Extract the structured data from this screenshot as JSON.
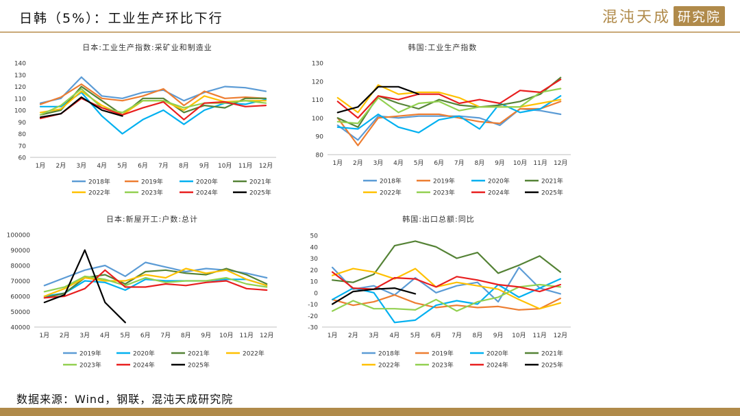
{
  "header": {
    "title": "日韩（5%）：工业生产环比下行",
    "brand_text": "混沌天成",
    "brand_box": "研究院"
  },
  "footer": {
    "source": "数据来源：Wind，钢联，混沌天成研究院"
  },
  "colors": {
    "accent": "#c9a877",
    "brand": "#b08a4a"
  },
  "chart_data": [
    {
      "type": "line",
      "title": "日本:工业生产指数:采矿业和制造业",
      "categories": [
        "1月",
        "2月",
        "3月",
        "4月",
        "5月",
        "6月",
        "7月",
        "8月",
        "9月",
        "10月",
        "11月",
        "12月"
      ],
      "ylim": [
        60,
        140
      ],
      "yticks": [
        60,
        70,
        80,
        90,
        100,
        110,
        120,
        130,
        140
      ],
      "series": [
        {
          "name": "2018年",
          "color": "#5b9bd5",
          "values": [
            106,
            110,
            128,
            112,
            110,
            115,
            117,
            108,
            115,
            120,
            119,
            116
          ]
        },
        {
          "name": "2019年",
          "color": "#ed7d31",
          "values": [
            105,
            111,
            122,
            110,
            108,
            112,
            118,
            104,
            116,
            110,
            111,
            110
          ]
        },
        {
          "name": "2020年",
          "color": "#00b0f0",
          "values": [
            103,
            103,
            115,
            95,
            80,
            92,
            100,
            88,
            100,
            106,
            105,
            109
          ]
        },
        {
          "name": "2021年",
          "color": "#548235",
          "values": [
            96,
            100,
            120,
            108,
            96,
            110,
            110,
            98,
            104,
            102,
            110,
            110
          ]
        },
        {
          "name": "2022年",
          "color": "#ffc000",
          "values": [
            98,
            101,
            116,
            104,
            96,
            108,
            108,
            100,
            112,
            107,
            108,
            108
          ]
        },
        {
          "name": "2023年",
          "color": "#92d050",
          "values": [
            96,
            104,
            118,
            102,
            98,
            108,
            108,
            102,
            106,
            106,
            108,
            106
          ]
        },
        {
          "name": "2024年",
          "color": "#e81e1e",
          "values": [
            93,
            97,
            110,
            102,
            96,
            102,
            107,
            92,
            106,
            107,
            103,
            104
          ]
        },
        {
          "name": "2025年",
          "color": "#000000",
          "values": [
            94,
            97,
            111,
            100,
            95,
            null,
            null,
            null,
            null,
            null,
            null,
            null
          ]
        }
      ],
      "legend": "bottom"
    },
    {
      "type": "line",
      "title": "韩国:工业生产指数",
      "categories": [
        "1月",
        "2月",
        "3月",
        "4月",
        "5月",
        "6月",
        "7月",
        "8月",
        "9月",
        "10月",
        "11月",
        "12月"
      ],
      "ylim": [
        80,
        130
      ],
      "yticks": [
        80,
        90,
        100,
        110,
        120,
        130
      ],
      "series": [
        {
          "name": "2018年",
          "color": "#5b9bd5",
          "values": [
            96,
            88,
            101,
            100,
            101,
            101,
            101,
            100,
            96,
            105,
            104,
            102
          ]
        },
        {
          "name": "2019年",
          "color": "#ed7d31",
          "values": [
            100,
            85,
            100,
            101,
            102,
            102,
            100,
            98,
            97,
            105,
            105,
            109
          ]
        },
        {
          "name": "2020年",
          "color": "#00b0f0",
          "values": [
            95,
            94,
            102,
            95,
            92,
            99,
            101,
            94,
            108,
            103,
            105,
            112
          ]
        },
        {
          "name": "2021年",
          "color": "#548235",
          "values": [
            100,
            95,
            112,
            108,
            105,
            110,
            107,
            106,
            107,
            109,
            113,
            122
          ]
        },
        {
          "name": "2022年",
          "color": "#ffc000",
          "values": [
            111,
            103,
            118,
            113,
            114,
            114,
            111,
            106,
            106,
            106,
            108,
            110
          ]
        },
        {
          "name": "2023年",
          "color": "#92d050",
          "values": [
            98,
            97,
            111,
            103,
            108,
            109,
            104,
            106,
            106,
            106,
            114,
            116
          ]
        },
        {
          "name": "2024年",
          "color": "#e81e1e",
          "values": [
            109,
            100,
            112,
            110,
            113,
            113,
            108,
            110,
            108,
            115,
            114,
            121
          ]
        },
        {
          "name": "2025年",
          "color": "#000000",
          "values": [
            103,
            106,
            117,
            117,
            113,
            null,
            null,
            null,
            null,
            null,
            null,
            null
          ]
        }
      ],
      "legend": "bottom"
    },
    {
      "type": "line",
      "title": "日本:新屋开工:户数:总计",
      "categories": [
        "1月",
        "2月",
        "3月",
        "4月",
        "5月",
        "6月",
        "7月",
        "8月",
        "9月",
        "10月",
        "11月",
        "12月"
      ],
      "ylim": [
        40000,
        100000
      ],
      "yticks": [
        40000,
        50000,
        60000,
        70000,
        80000,
        90000,
        100000
      ],
      "series": [
        {
          "name": "2019年",
          "color": "#5b9bd5",
          "values": [
            67000,
            72000,
            77000,
            80000,
            73000,
            82000,
            79000,
            76000,
            78000,
            77000,
            75000,
            72000
          ]
        },
        {
          "name": "2020年",
          "color": "#00b0f0",
          "values": [
            60000,
            62000,
            70000,
            69000,
            64000,
            71000,
            70000,
            70000,
            70000,
            71000,
            71000,
            67000
          ]
        },
        {
          "name": "2021年",
          "color": "#548235",
          "values": [
            59000,
            62000,
            72000,
            74000,
            68000,
            76000,
            77000,
            75000,
            74000,
            78000,
            74000,
            68000
          ]
        },
        {
          "name": "2022年",
          "color": "#ffc000",
          "values": [
            60000,
            65000,
            72000,
            70000,
            70000,
            74000,
            72000,
            78000,
            75000,
            77000,
            71000,
            67000
          ]
        },
        {
          "name": "2023年",
          "color": "#92d050",
          "values": [
            63000,
            66000,
            73000,
            71000,
            67000,
            72000,
            69000,
            70000,
            70000,
            72000,
            68000,
            66000
          ]
        },
        {
          "name": "2024年",
          "color": "#e81e1e",
          "values": [
            59000,
            60000,
            65000,
            77000,
            66000,
            66000,
            68000,
            67000,
            69000,
            70000,
            65000,
            64000
          ]
        },
        {
          "name": "2025年",
          "color": "#000000",
          "values": [
            56000,
            61000,
            90000,
            56000,
            43000,
            null,
            null,
            null,
            null,
            null,
            null,
            null
          ]
        }
      ],
      "legend": "bottom"
    },
    {
      "type": "line",
      "title": "韩国:出口总额:同比",
      "categories": [
        "1月",
        "2月",
        "3月",
        "4月",
        "5月",
        "6月",
        "7月",
        "8月",
        "9月",
        "10月",
        "11月",
        "12月"
      ],
      "ylim": [
        -30,
        50
      ],
      "yticks": [
        -30,
        -20,
        -10,
        0,
        10,
        20,
        30,
        40,
        50
      ],
      "series": [
        {
          "name": "2018年",
          "color": "#5b9bd5",
          "values": [
            22,
            3,
            6,
            -2,
            13,
            0,
            6,
            9,
            -8,
            22,
            4,
            -1
          ]
        },
        {
          "name": "2019年",
          "color": "#ed7d31",
          "values": [
            -6,
            -11,
            -8,
            -2,
            -9,
            -13,
            -11,
            -13,
            -12,
            -15,
            -14,
            -5
          ]
        },
        {
          "name": "2020年",
          "color": "#00b0f0",
          "values": [
            -6,
            4,
            0,
            -26,
            -24,
            -11,
            -7,
            -10,
            7,
            -4,
            4,
            12
          ]
        },
        {
          "name": "2021年",
          "color": "#548235",
          "values": [
            11,
            9,
            16,
            41,
            45,
            40,
            30,
            35,
            17,
            24,
            32,
            18
          ]
        },
        {
          "name": "2022年",
          "color": "#ffc000",
          "values": [
            15,
            21,
            18,
            12,
            21,
            5,
            9,
            6,
            3,
            -6,
            -14,
            -9
          ]
        },
        {
          "name": "2023年",
          "color": "#92d050",
          "values": [
            -16,
            -7,
            -14,
            -14,
            -15,
            -6,
            -16,
            -8,
            -4,
            5,
            7,
            5
          ]
        },
        {
          "name": "2024年",
          "color": "#e81e1e",
          "values": [
            18,
            4,
            3,
            13,
            12,
            5,
            14,
            11,
            7,
            5,
            1,
            7
          ]
        },
        {
          "name": "2025年",
          "color": "#000000",
          "values": [
            -10,
            1,
            3,
            4,
            -1,
            null,
            null,
            null,
            null,
            null,
            null,
            null
          ]
        }
      ],
      "legend": "bottom"
    }
  ]
}
